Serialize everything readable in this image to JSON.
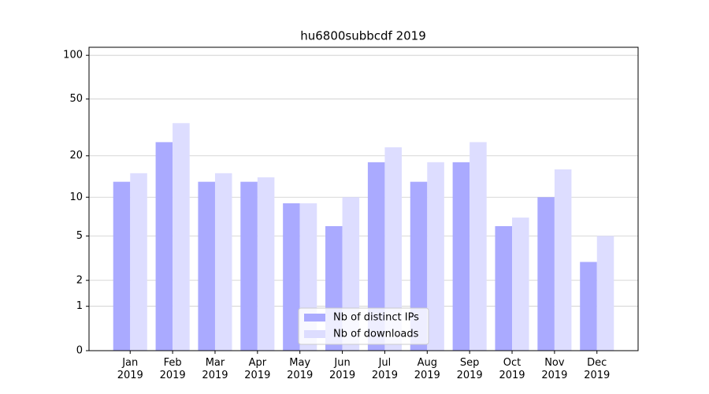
{
  "chart_data": {
    "type": "bar",
    "title": "hu6800subbcdf 2019",
    "categories": [
      "Jan\n2019",
      "Feb\n2019",
      "Mar\n2019",
      "Apr\n2019",
      "May\n2019",
      "Jun\n2019",
      "Jul\n2019",
      "Aug\n2019",
      "Sep\n2019",
      "Oct\n2019",
      "Nov\n2019",
      "Dec\n2019"
    ],
    "series": [
      {
        "name": "Nb of distinct IPs",
        "color": "#aaaaff",
        "values": [
          13,
          25,
          13,
          13,
          9,
          6,
          18,
          13,
          18,
          6,
          10,
          3
        ]
      },
      {
        "name": "Nb of downloads",
        "color": "#ddddff",
        "values": [
          15,
          34,
          15,
          14,
          9,
          10,
          23,
          18,
          25,
          7,
          16,
          5
        ]
      }
    ],
    "yscale": "log1p",
    "ylim": [
      0,
      113.5
    ],
    "yticks": [
      0,
      1,
      2,
      5,
      10,
      20,
      50,
      100
    ],
    "grid": true,
    "legend": "lower center"
  }
}
